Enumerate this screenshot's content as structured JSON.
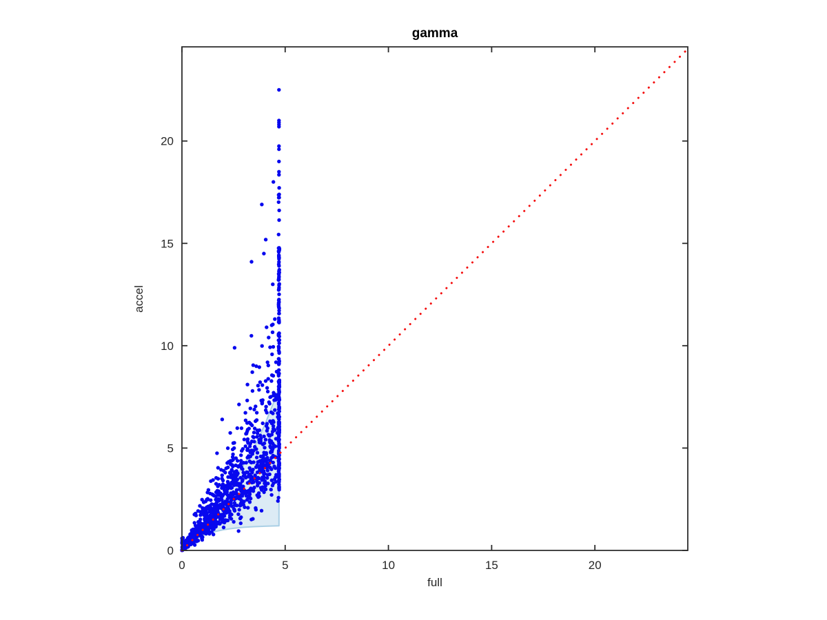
{
  "window": {
    "background": "#ffffff"
  },
  "chart_data": {
    "type": "scatter",
    "title": "gamma",
    "xlabel": "full",
    "ylabel": "accel",
    "xlim": [
      0,
      24.5
    ],
    "ylim": [
      0,
      24.6
    ],
    "x_ticks": [
      0,
      5,
      10,
      15,
      20
    ],
    "y_ticks": [
      0,
      5,
      10,
      15,
      20
    ],
    "grid": false,
    "legend": false,
    "axis_color": "#2b2b2b",
    "tick_length": 8,
    "identity_line": {
      "style": "dotted",
      "color": "#f40f0f",
      "from": [
        0,
        0
      ],
      "to": [
        24.5,
        24.5
      ],
      "dot_size": 3,
      "dot_spacing": 10.5
    },
    "band": {
      "fill": "#dcebf5",
      "edge": "#a9cfe5",
      "x_cut": 4.7,
      "upper": [
        [
          0,
          0
        ],
        [
          0.4,
          0.5
        ],
        [
          0.9,
          1.15
        ],
        [
          1.4,
          1.85
        ],
        [
          1.9,
          2.6
        ],
        [
          2.4,
          3.35
        ],
        [
          2.85,
          3.95
        ],
        [
          3.25,
          4.6
        ],
        [
          3.6,
          5.25
        ],
        [
          4.0,
          6.1
        ],
        [
          4.35,
          7.0
        ],
        [
          4.55,
          7.5
        ],
        [
          4.7,
          8.0
        ]
      ],
      "lower": [
        [
          0,
          0
        ],
        [
          0.25,
          0.26
        ],
        [
          0.5,
          0.45
        ],
        [
          0.8,
          0.62
        ],
        [
          1.1,
          0.76
        ],
        [
          1.5,
          0.9
        ],
        [
          2.0,
          1.01
        ],
        [
          2.5,
          1.08
        ],
        [
          3.0,
          1.13
        ],
        [
          3.5,
          1.16
        ],
        [
          4.0,
          1.18
        ],
        [
          4.7,
          1.2
        ]
      ]
    },
    "scatter": {
      "marker_color": "#0808ee",
      "marker_radius": 2.7,
      "seed": 11,
      "cloud": {
        "n": 1000,
        "x_max": 4.68,
        "x_power": 1.15,
        "ratio_log_mean": 0.18,
        "ratio_log_sd": 0.33,
        "y_cap": 24.3
      },
      "column": {
        "x": 4.7,
        "x_jitter": 0.02,
        "segments": [
          {
            "n": 125,
            "y_range": [
              2.95,
              8.3
            ]
          },
          {
            "n": 75,
            "y_range": [
              8.0,
              14.8
            ]
          },
          {
            "n": 13,
            "y_range": [
              14.5,
              18.0
            ]
          }
        ],
        "top_points": [
          18.35,
          18.5,
          19.0,
          19.6,
          19.75,
          20.7,
          20.8,
          20.9,
          21.0,
          22.5
        ]
      },
      "axis_blob": {
        "n": 22,
        "x_range": [
          0,
          0.05
        ],
        "y_range": [
          0,
          0.65
        ]
      },
      "outliers": [
        [
          3.87,
          16.9
        ],
        [
          4.43,
          18.0
        ],
        [
          3.37,
          14.1
        ],
        [
          3.97,
          14.5
        ],
        [
          4.4,
          13.0
        ],
        [
          2.55,
          9.9
        ],
        [
          3.45,
          9.05
        ],
        [
          3.6,
          9.0
        ],
        [
          3.75,
          8.95
        ],
        [
          4.2,
          10.4
        ],
        [
          4.35,
          11.0
        ],
        [
          4.5,
          11.3
        ],
        [
          4.1,
          10.9
        ],
        [
          1.95,
          6.4
        ],
        [
          1.7,
          4.75
        ]
      ]
    }
  }
}
